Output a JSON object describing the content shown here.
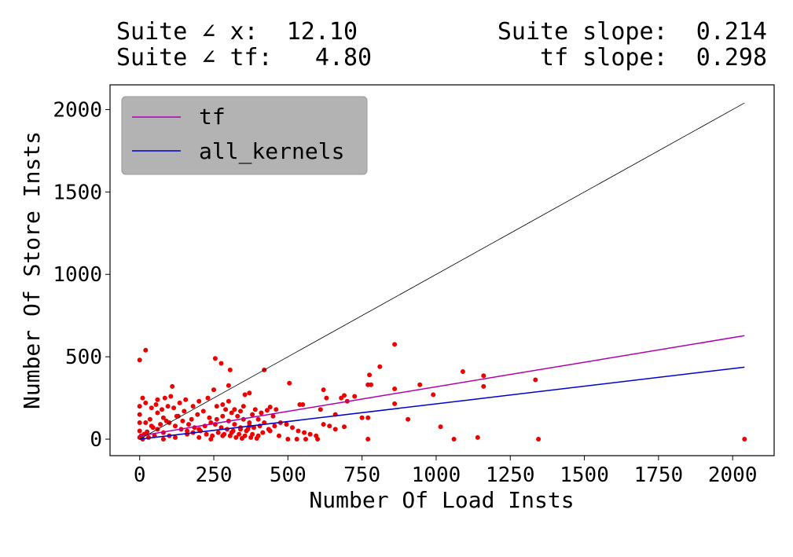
{
  "header": {
    "suite_angle_x": "Suite ∠ x:  12.10",
    "suite_angle_tf": "Suite ∠ tf:   4.80",
    "suite_slope": "Suite slope:  0.214",
    "tf_slope": "tf slope:  0.298"
  },
  "chart_data": {
    "type": "scatter",
    "xlabel": "Number Of Load Insts",
    "ylabel": "Number Of Store Insts",
    "xlim": [
      -100,
      2140
    ],
    "ylim": [
      -100,
      2150
    ],
    "xticks": [
      0,
      250,
      500,
      750,
      1000,
      1250,
      1500,
      1750,
      2000
    ],
    "yticks": [
      0,
      500,
      1000,
      1500,
      2000
    ],
    "grid": false,
    "legend_position": "upper-left",
    "colors": {
      "points": "#ee0000",
      "tf": "#b000b0",
      "all_kernels": "#0000cc",
      "identity": "#000000",
      "legend_bg": "#b3b3b3"
    },
    "lines": [
      {
        "name": "tf",
        "x": [
          0,
          2040
        ],
        "y": [
          20,
          628
        ]
      },
      {
        "name": "all_kernels",
        "x": [
          0,
          2040
        ],
        "y": [
          0,
          437
        ]
      },
      {
        "x": [
          0,
          2040
        ],
        "y": [
          0,
          2040
        ]
      }
    ],
    "points": [
      [
        0,
        480
      ],
      [
        20,
        540
      ],
      [
        300,
        325
      ],
      [
        255,
        490
      ],
      [
        305,
        420
      ],
      [
        420,
        420
      ],
      [
        860,
        575
      ],
      [
        810,
        440
      ],
      [
        275,
        460
      ],
      [
        505,
        340
      ],
      [
        1090,
        410
      ],
      [
        1160,
        385
      ],
      [
        1160,
        320
      ],
      [
        1335,
        360
      ],
      [
        945,
        330
      ],
      [
        990,
        270
      ],
      [
        860,
        305
      ],
      [
        775,
        390
      ],
      [
        780,
        330
      ],
      [
        770,
        330
      ],
      [
        860,
        215
      ],
      [
        905,
        120
      ],
      [
        1015,
        75
      ],
      [
        1060,
        0
      ],
      [
        1140,
        10
      ],
      [
        1345,
        0
      ],
      [
        2040,
        0
      ],
      [
        620,
        300
      ],
      [
        630,
        250
      ],
      [
        680,
        250
      ],
      [
        690,
        265
      ],
      [
        725,
        260
      ],
      [
        700,
        230
      ],
      [
        610,
        180
      ],
      [
        660,
        150
      ],
      [
        550,
        210
      ],
      [
        540,
        210
      ],
      [
        620,
        90
      ],
      [
        640,
        80
      ],
      [
        660,
        60
      ],
      [
        690,
        75
      ],
      [
        750,
        130
      ],
      [
        770,
        130
      ],
      [
        770,
        0
      ],
      [
        600,
        0
      ],
      [
        560,
        0
      ],
      [
        530,
        0
      ],
      [
        500,
        0
      ],
      [
        470,
        20
      ],
      [
        440,
        50
      ],
      [
        420,
        100
      ],
      [
        450,
        140
      ],
      [
        430,
        175
      ],
      [
        460,
        180
      ],
      [
        440,
        195
      ],
      [
        355,
        270
      ],
      [
        370,
        280
      ],
      [
        350,
        200
      ],
      [
        380,
        150
      ],
      [
        400,
        120
      ],
      [
        370,
        80
      ],
      [
        340,
        60
      ],
      [
        310,
        40
      ],
      [
        280,
        20
      ],
      [
        240,
        0
      ],
      [
        200,
        10
      ],
      [
        160,
        30
      ],
      [
        120,
        10
      ],
      [
        80,
        0
      ],
      [
        50,
        20
      ],
      [
        30,
        10
      ],
      [
        10,
        0
      ],
      [
        0,
        10
      ],
      [
        0,
        50
      ],
      [
        0,
        100
      ],
      [
        0,
        150
      ],
      [
        0,
        200
      ],
      [
        10,
        250
      ],
      [
        20,
        220
      ],
      [
        40,
        190
      ],
      [
        60,
        160
      ],
      [
        80,
        130
      ],
      [
        100,
        100
      ],
      [
        120,
        80
      ],
      [
        140,
        60
      ],
      [
        160,
        50
      ],
      [
        180,
        40
      ],
      [
        200,
        60
      ],
      [
        220,
        80
      ],
      [
        240,
        100
      ],
      [
        260,
        120
      ],
      [
        280,
        140
      ],
      [
        300,
        110
      ],
      [
        320,
        90
      ],
      [
        340,
        70
      ],
      [
        360,
        50
      ],
      [
        380,
        30
      ],
      [
        400,
        20
      ],
      [
        110,
        320
      ],
      [
        250,
        300
      ],
      [
        230,
        250
      ],
      [
        200,
        230
      ],
      [
        180,
        200
      ],
      [
        150,
        170
      ],
      [
        130,
        140
      ],
      [
        90,
        110
      ],
      [
        70,
        90
      ],
      [
        45,
        70
      ],
      [
        25,
        45
      ],
      [
        15,
        30
      ],
      [
        5,
        20
      ],
      [
        35,
        120
      ],
      [
        55,
        210
      ],
      [
        75,
        180
      ],
      [
        95,
        200
      ],
      [
        115,
        190
      ],
      [
        135,
        220
      ],
      [
        155,
        240
      ],
      [
        175,
        120
      ],
      [
        195,
        150
      ],
      [
        215,
        170
      ],
      [
        235,
        130
      ],
      [
        255,
        90
      ],
      [
        275,
        70
      ],
      [
        295,
        60
      ],
      [
        315,
        50
      ],
      [
        335,
        30
      ],
      [
        355,
        20
      ],
      [
        375,
        10
      ],
      [
        395,
        5
      ],
      [
        415,
        40
      ],
      [
        435,
        60
      ],
      [
        455,
        80
      ],
      [
        475,
        100
      ],
      [
        495,
        90
      ],
      [
        515,
        70
      ],
      [
        535,
        50
      ],
      [
        555,
        40
      ],
      [
        575,
        30
      ],
      [
        595,
        20
      ],
      [
        290,
        180
      ],
      [
        310,
        160
      ],
      [
        330,
        140
      ],
      [
        350,
        120
      ],
      [
        370,
        100
      ],
      [
        390,
        180
      ],
      [
        410,
        160
      ],
      [
        260,
        200
      ],
      [
        280,
        210
      ],
      [
        300,
        230
      ],
      [
        320,
        180
      ],
      [
        340,
        170
      ],
      [
        20,
        100
      ],
      [
        40,
        80
      ],
      [
        60,
        60
      ],
      [
        80,
        40
      ],
      [
        100,
        20
      ],
      [
        60,
        240
      ],
      [
        85,
        250
      ],
      [
        105,
        260
      ],
      [
        125,
        140
      ],
      [
        145,
        110
      ],
      [
        165,
        90
      ],
      [
        185,
        70
      ],
      [
        205,
        50
      ],
      [
        225,
        30
      ],
      [
        245,
        20
      ],
      [
        265,
        40
      ],
      [
        285,
        30
      ],
      [
        305,
        20
      ],
      [
        325,
        10
      ],
      [
        345,
        5
      ],
      [
        365,
        60
      ],
      [
        385,
        70
      ],
      [
        405,
        80
      ]
    ]
  }
}
